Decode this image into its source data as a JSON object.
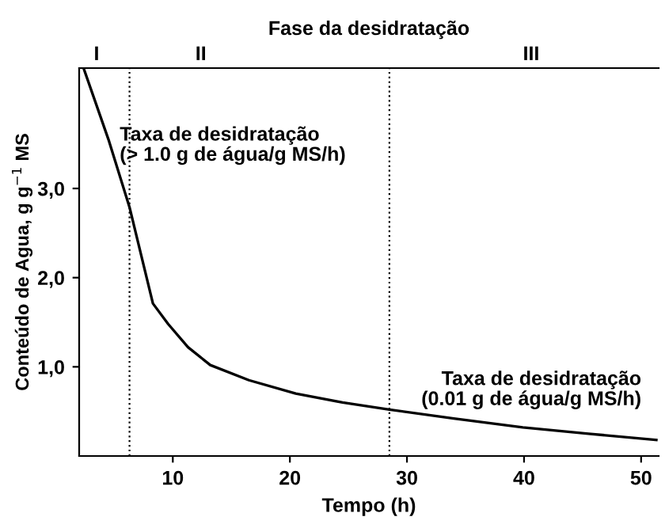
{
  "chart_data": {
    "type": "line",
    "xlabel": "Tempo (h)",
    "ylabel": "Conteúdo de Agua, g g$^{−1}$ MS",
    "x": [
      2.4,
      4.5,
      6.3,
      8.3,
      9.6,
      11.3,
      13.2,
      16.5,
      20.5,
      24.5,
      28.5,
      34,
      39.9,
      45.5,
      51.3
    ],
    "series": [
      {
        "color": "#000000",
        "values": [
          4.34,
          3.55,
          2.79,
          1.71,
          1.48,
          1.22,
          1.02,
          0.85,
          0.7,
          0.6,
          0.52,
          0.42,
          0.32,
          0.25,
          0.18
        ]
      }
    ],
    "xlim": [
      2,
      51.5
    ],
    "xticks": [
      10,
      20,
      30,
      40,
      50
    ],
    "ylim": [
      0,
      4.35
    ],
    "yticks": [
      {
        "value": 1,
        "label": "1,0"
      },
      {
        "value": 2,
        "label": "2,0"
      },
      {
        "value": 3,
        "label": "3,0"
      }
    ],
    "ref_lines": [
      {
        "axis": "x",
        "value": 6.3,
        "color": "#000000",
        "line_style": "dotted"
      },
      {
        "axis": "x",
        "value": 28.5,
        "color": "#000000",
        "line_style": "dotted"
      }
    ],
    "annotations": [
      "Fase da desidratação",
      "I",
      "II",
      "III",
      "Taxa de desidratação\n(> 1.0 g de água/g MS/h)",
      "Taxa de desidratação\n(0.01 g de água/g MS/h)"
    ],
    "grid": false,
    "legend": false,
    "marker": "none",
    "line_style": "solid"
  }
}
